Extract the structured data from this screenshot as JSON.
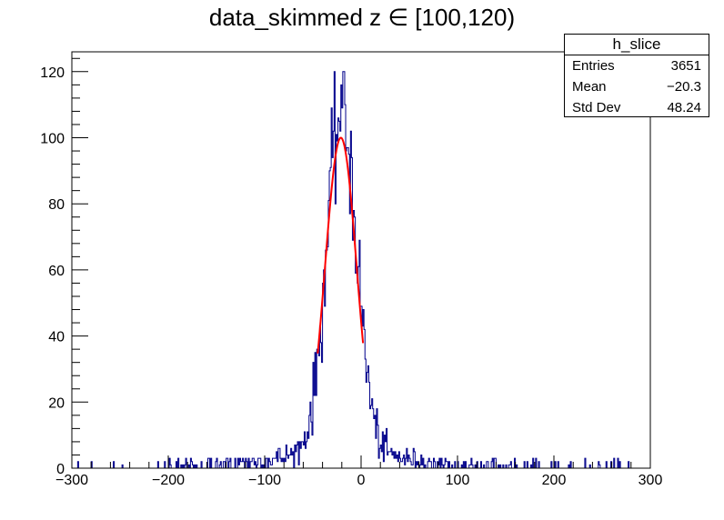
{
  "chart_data": {
    "type": "histogram",
    "title": "data_skimmed z  ∈ [100,120)",
    "xlim": [
      -300,
      300
    ],
    "ylim": [
      0,
      126
    ],
    "x_ticks": [
      -300,
      -200,
      -100,
      0,
      100,
      200,
      300
    ],
    "y_ticks": [
      0,
      20,
      40,
      60,
      80,
      100,
      120
    ],
    "x_tick_labels": [
      "−300",
      "−200",
      "−100",
      "0",
      "100",
      "200",
      "300"
    ],
    "y_tick_labels": [
      "0",
      "20",
      "40",
      "60",
      "80",
      "100",
      "120"
    ],
    "grid": false,
    "histogram": {
      "color": "#00008b",
      "bin_width": 1,
      "shape": "gaussian core plus broad tails",
      "peak_x": -20,
      "peak_y": 100,
      "max_y": 120
    },
    "fit": {
      "color": "#ff0000",
      "type": "gaussian",
      "mean": -21,
      "sigma": 16.5,
      "amplitude": 100,
      "range": [
        -45,
        2
      ]
    },
    "stats_box": {
      "name": "h_slice",
      "entries_label": "Entries",
      "entries": "3651",
      "mean_label": "Mean",
      "mean": "−20.3",
      "stddev_label": "Std Dev",
      "stddev": "48.24",
      "position": "top-right"
    }
  }
}
